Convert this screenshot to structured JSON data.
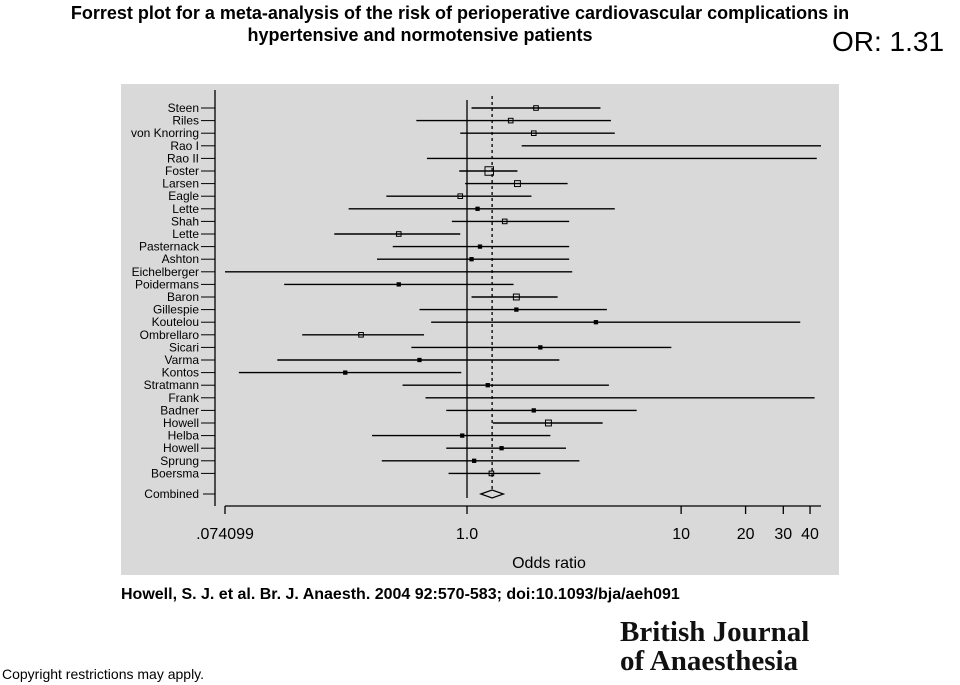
{
  "title": {
    "line1": "Forrest plot for a meta-analysis of the risk of perioperative cardiovascular complications in",
    "line2": "hypertensive and normotensive patients"
  },
  "summary_label": "OR: 1.31",
  "citation": "Howell, S. J. et al. Br. J. Anaesth. 2004 92:570-583; doi:10.1093/bja/aeh091",
  "copyright": "Copyright restrictions may apply.",
  "logo": {
    "line1": "British Journal",
    "line2": "of Anaesthesia"
  },
  "colors": {
    "plot_background": "#d9d9d9",
    "ink": "#000000"
  },
  "chart_data": {
    "type": "forest",
    "xlabel": "Odds ratio",
    "x_scale": "log",
    "xlim": [
      0.074099,
      45
    ],
    "xticks": [
      {
        "value": 0.074099,
        "label": ".074099"
      },
      {
        "value": 1.0,
        "label": "1.0"
      },
      {
        "value": 10,
        "label": "10"
      },
      {
        "value": 20,
        "label": "20"
      },
      {
        "value": 30,
        "label": "30"
      },
      {
        "value": 40,
        "label": "40"
      }
    ],
    "reference_line": 1.0,
    "pooled_line": 1.31,
    "studies": [
      {
        "name": "Steen",
        "or": 2.1,
        "lo": 1.05,
        "hi": 4.2,
        "weight": 2
      },
      {
        "name": "Riles",
        "or": 1.6,
        "lo": 0.58,
        "hi": 4.7,
        "weight": 2
      },
      {
        "name": "von Knorring",
        "or": 2.05,
        "lo": 0.93,
        "hi": 4.9,
        "weight": 2
      },
      {
        "name": "Rao I",
        "or": 0,
        "lo": 1.8,
        "hi": 45,
        "weight": 0
      },
      {
        "name": "Rao II",
        "or": 0,
        "lo": 0.65,
        "hi": 43,
        "weight": 0
      },
      {
        "name": "Foster",
        "or": 1.27,
        "lo": 0.92,
        "hi": 1.72,
        "weight": 5
      },
      {
        "name": "Larsen",
        "or": 1.72,
        "lo": 0.98,
        "hi": 2.95,
        "weight": 3
      },
      {
        "name": "Eagle",
        "or": 0.93,
        "lo": 0.42,
        "hi": 2.0,
        "weight": 2
      },
      {
        "name": "Lette",
        "or": 1.12,
        "lo": 0.28,
        "hi": 4.9,
        "weight": 1
      },
      {
        "name": "Shah",
        "or": 1.5,
        "lo": 0.85,
        "hi": 3.0,
        "weight": 2
      },
      {
        "name": "Lette",
        "or": 0.48,
        "lo": 0.24,
        "hi": 0.93,
        "weight": 2
      },
      {
        "name": "Pasternack",
        "or": 1.15,
        "lo": 0.45,
        "hi": 3.0,
        "weight": 1
      },
      {
        "name": "Ashton",
        "or": 1.05,
        "lo": 0.38,
        "hi": 3.0,
        "weight": 1
      },
      {
        "name": "Eichelberger",
        "or": 0,
        "lo": 0.074,
        "hi": 3.1,
        "weight": 0
      },
      {
        "name": "Poidermans",
        "or": 0.48,
        "lo": 0.14,
        "hi": 1.65,
        "weight": 1
      },
      {
        "name": "Baron",
        "or": 1.7,
        "lo": 1.05,
        "hi": 2.65,
        "weight": 3
      },
      {
        "name": "Gillespie",
        "or": 1.7,
        "lo": 0.6,
        "hi": 4.5,
        "weight": 1
      },
      {
        "name": "Koutelou",
        "or": 4.0,
        "lo": 0.68,
        "hi": 36,
        "weight": 1
      },
      {
        "name": "Ombrellaro",
        "or": 0.32,
        "lo": 0.17,
        "hi": 0.63,
        "weight": 2
      },
      {
        "name": "Sicari",
        "or": 2.2,
        "lo": 0.55,
        "hi": 9.0,
        "weight": 1
      },
      {
        "name": "Varma",
        "or": 0.6,
        "lo": 0.13,
        "hi": 2.7,
        "weight": 1
      },
      {
        "name": "Kontos",
        "or": 0.27,
        "lo": 0.086,
        "hi": 0.94,
        "weight": 1
      },
      {
        "name": "Stratmann",
        "or": 1.25,
        "lo": 0.5,
        "hi": 4.6,
        "weight": 1
      },
      {
        "name": "Frank",
        "or": 0,
        "lo": 0.64,
        "hi": 42,
        "weight": 0
      },
      {
        "name": "Badner",
        "or": 2.05,
        "lo": 0.8,
        "hi": 6.2,
        "weight": 1
      },
      {
        "name": "Howell",
        "or": 2.4,
        "lo": 1.32,
        "hi": 4.3,
        "weight": 3
      },
      {
        "name": "Helba",
        "or": 0.95,
        "lo": 0.36,
        "hi": 2.45,
        "weight": 1
      },
      {
        "name": "Howell",
        "or": 1.45,
        "lo": 0.8,
        "hi": 2.9,
        "weight": 1
      },
      {
        "name": "Sprung",
        "or": 1.08,
        "lo": 0.4,
        "hi": 3.35,
        "weight": 1
      },
      {
        "name": "Boersma",
        "or": 1.3,
        "lo": 0.82,
        "hi": 2.2,
        "weight": 2
      }
    ],
    "combined": {
      "name": "Combined",
      "or": 1.31,
      "lo": 1.16,
      "hi": 1.48
    }
  }
}
